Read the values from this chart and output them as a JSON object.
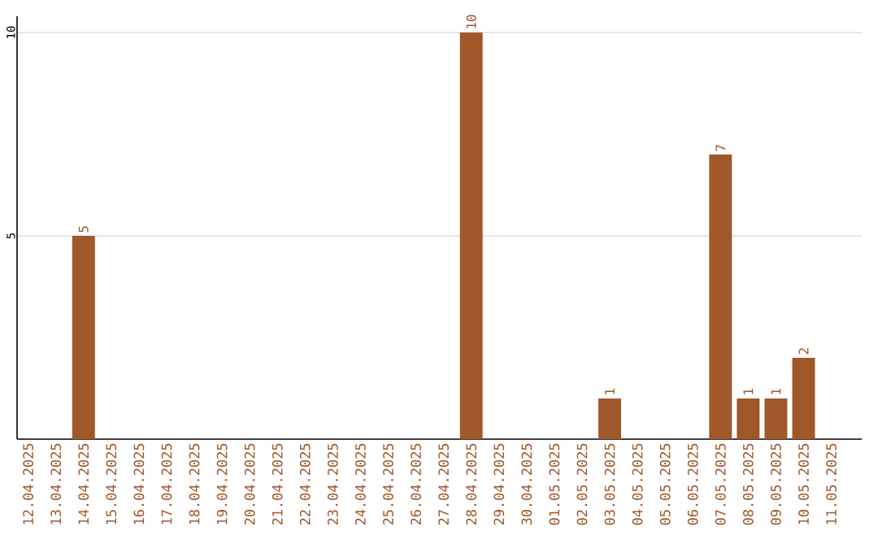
{
  "chart_data": {
    "type": "bar",
    "categories": [
      "12.04.2025",
      "13.04.2025",
      "14.04.2025",
      "15.04.2025",
      "16.04.2025",
      "17.04.2025",
      "18.04.2025",
      "19.04.2025",
      "20.04.2025",
      "21.04.2025",
      "22.04.2025",
      "23.04.2025",
      "24.04.2025",
      "25.04.2025",
      "26.04.2025",
      "27.04.2025",
      "28.04.2025",
      "29.04.2025",
      "30.04.2025",
      "01.05.2025",
      "02.05.2025",
      "03.05.2025",
      "04.05.2025",
      "05.05.2025",
      "06.05.2025",
      "07.05.2025",
      "08.05.2025",
      "09.05.2025",
      "10.05.2025",
      "11.05.2025"
    ],
    "values": [
      0,
      0,
      5,
      0,
      0,
      0,
      0,
      0,
      0,
      0,
      0,
      0,
      0,
      0,
      0,
      0,
      10,
      0,
      0,
      0,
      0,
      1,
      0,
      0,
      0,
      7,
      1,
      1,
      2,
      0
    ],
    "value_labels": [
      null,
      null,
      "5",
      null,
      null,
      null,
      null,
      null,
      null,
      null,
      null,
      null,
      null,
      null,
      null,
      null,
      "10",
      null,
      null,
      null,
      null,
      "1",
      null,
      null,
      null,
      "7",
      "1",
      "1",
      "2",
      null
    ],
    "color": "#a0572a",
    "ylim": [
      0,
      10.4
    ],
    "yticks": [
      5,
      10
    ],
    "grid": "y"
  }
}
